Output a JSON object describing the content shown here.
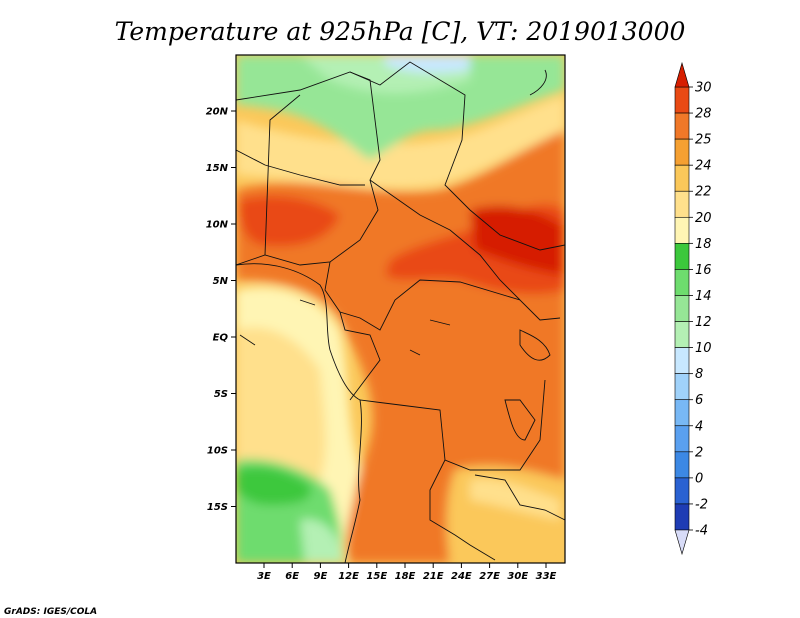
{
  "title": "Temperature at 925hPa [C], VT: 2019013000",
  "credit": "GrADS: IGES/COLA",
  "lat_ticks": [
    {
      "label": "20N",
      "lat": 20
    },
    {
      "label": "15N",
      "lat": 15
    },
    {
      "label": "10N",
      "lat": 10
    },
    {
      "label": "5N",
      "lat": 5
    },
    {
      "label": "EQ",
      "lat": 0
    },
    {
      "label": "5S",
      "lat": -5
    },
    {
      "label": "10S",
      "lat": -10
    },
    {
      "label": "15S",
      "lat": -15
    }
  ],
  "lon_ticks": [
    {
      "label": "3E",
      "lon": 3
    },
    {
      "label": "6E",
      "lon": 6
    },
    {
      "label": "9E",
      "lon": 9
    },
    {
      "label": "12E",
      "lon": 12
    },
    {
      "label": "15E",
      "lon": 15
    },
    {
      "label": "18E",
      "lon": 18
    },
    {
      "label": "21E",
      "lon": 21
    },
    {
      "label": "24E",
      "lon": 24
    },
    {
      "label": "27E",
      "lon": 27
    },
    {
      "label": "30E",
      "lon": 30
    },
    {
      "label": "33E",
      "lon": 33
    }
  ],
  "colorbar": {
    "levels": [
      "-4",
      "-2",
      "0",
      "2",
      "4",
      "6",
      "8",
      "10",
      "12",
      "14",
      "16",
      "18",
      "20",
      "22",
      "24",
      "25",
      "28",
      "30"
    ],
    "colors": [
      "#0a0a6e",
      "#1e3cb4",
      "#2a62d2",
      "#3c88e4",
      "#5aa0f0",
      "#78b8f5",
      "#a0d2fa",
      "#c8e8ff",
      "#b4f0b4",
      "#96e696",
      "#6edc6e",
      "#3cc83c",
      "#fff5b4",
      "#ffe08c",
      "#fbc85a",
      "#f5a032",
      "#f07828",
      "#e94a14",
      "#d61e00"
    ],
    "under_color": "#d8dcf8",
    "over_color": "#d61e00"
  }
}
